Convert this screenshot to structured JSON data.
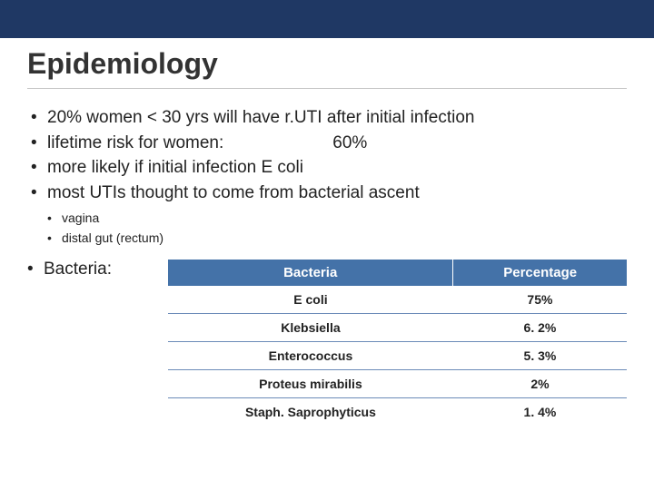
{
  "colors": {
    "top_bar": "#1f3864",
    "table_header_bg": "#4472a8",
    "table_header_fg": "#ffffff",
    "table_border": "#6b8bb8",
    "text": "#222222",
    "title": "#333333",
    "divider": "#c7c7c7"
  },
  "title": "Epidemiology",
  "bullets": {
    "b0": "20% women < 30 yrs will have r.UTI after initial infection",
    "b1_pre": "lifetime risk for women:",
    "b1_val": "60%",
    "b2": "more likely if initial infection E coli",
    "b3": "most UTIs thought to come from bacterial ascent"
  },
  "sub_bullets": {
    "s0": "vagina",
    "s1": "distal gut (rectum)"
  },
  "bacteria_label": "Bacteria:",
  "table": {
    "columns": {
      "c0": "Bacteria",
      "c1": "Percentage"
    },
    "rows": [
      {
        "name": "E coli",
        "pct": "75%"
      },
      {
        "name": "Klebsiella",
        "pct": "6. 2%"
      },
      {
        "name": "Enterococcus",
        "pct": "5. 3%"
      },
      {
        "name": "Proteus mirabilis",
        "pct": "2%"
      },
      {
        "name": "Staph. Saprophyticus",
        "pct": "1. 4%"
      }
    ]
  }
}
